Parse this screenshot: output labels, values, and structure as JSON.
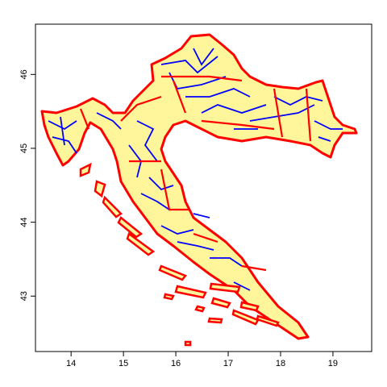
{
  "chart_data": {
    "type": "map",
    "xlim": [
      13.32,
      19.74
    ],
    "ylim": [
      42.25,
      46.68
    ],
    "xticks": [
      14,
      15,
      16,
      17,
      18,
      19
    ],
    "yticks": [
      43,
      44,
      45,
      46
    ]
  }
}
